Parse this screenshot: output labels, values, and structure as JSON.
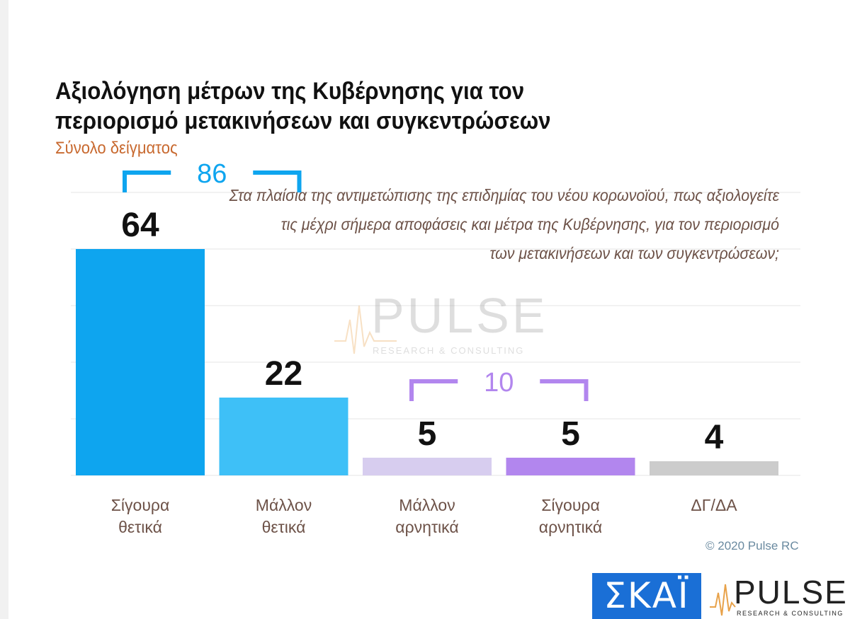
{
  "chart_data": {
    "type": "bar",
    "title_lines": [
      "Αξιολόγηση μέτρων της Κυβέρνησης για τον",
      "περιορισμό μετακινήσεων και συγκεντρώσεων"
    ],
    "subtitle": "Σύνολο δείγματος",
    "question_lines": [
      "Στα πλαίσια της αντιμετώπισης της επιδημίας του νέου κορωνοϊού, πως αξιολογείτε",
      "τις μέχρι σήμερα αποφάσεις και μέτρα της Κυβέρνησης, για τον περιορισμό",
      "των μετακινήσεων και των συγκεντρώσεων;"
    ],
    "categories": [
      [
        "Σίγουρα",
        "θετικά"
      ],
      [
        "Μάλλον",
        "θετικά"
      ],
      [
        "Μάλλον",
        "αρνητικά"
      ],
      [
        "Σίγουρα",
        "αρνητικά"
      ],
      [
        "ΔΓ/ΔΑ"
      ]
    ],
    "values": [
      64,
      22,
      5,
      5,
      4
    ],
    "value_labels": [
      "64",
      "22",
      "5",
      "5",
      "4"
    ],
    "bar_colors": [
      "#0ea5ef",
      "#3ec0f7",
      "#d7cdef",
      "#b286ee",
      "#cccccc"
    ],
    "groups": [
      {
        "label": "86",
        "from": 0,
        "to": 1,
        "color": "#0ea5ef"
      },
      {
        "label": "10",
        "from": 2,
        "to": 3,
        "color": "#b286ee"
      }
    ],
    "ylim": [
      0,
      80
    ],
    "grid": true
  },
  "watermark": {
    "word": "PULSE",
    "sub": "RESEARCH & CONSULTING"
  },
  "copyright": "© 2020 Pulse RC",
  "logos": {
    "skai": "ΣΚΑΪ",
    "pulse_word": "PULSE",
    "pulse_sub": "RESEARCH & CONSULTING",
    "pulse_icon": "pulse-heartbeat-icon"
  }
}
